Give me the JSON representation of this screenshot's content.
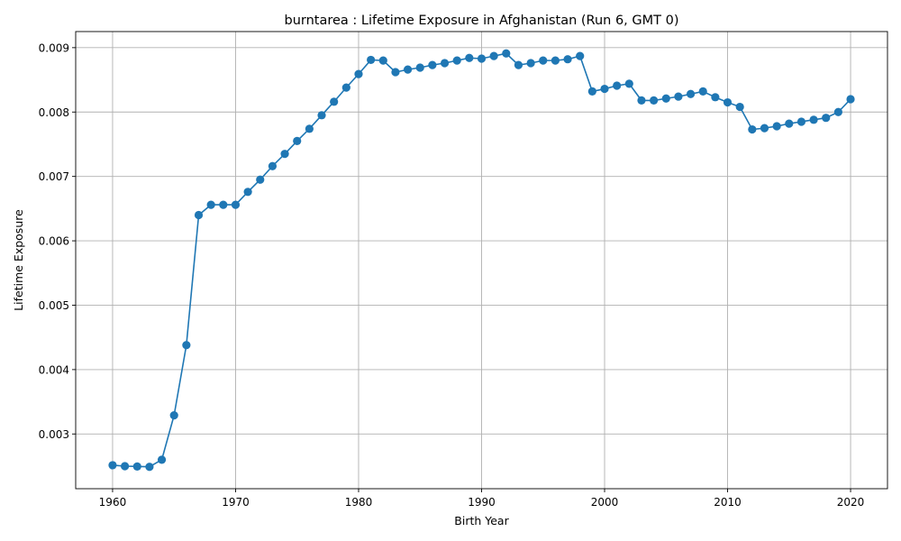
{
  "chart_data": {
    "type": "line",
    "title": "burntarea : Lifetime Exposure in Afghanistan (Run 6, GMT 0)",
    "xlabel": "Birth Year",
    "ylabel": "Lifetime Exposure",
    "xlim": [
      1957,
      2023
    ],
    "ylim": [
      0.00215,
      0.00925
    ],
    "xticks": [
      1960,
      1970,
      1980,
      1990,
      2000,
      2010,
      2020
    ],
    "xtick_labels": [
      "1960",
      "1970",
      "1980",
      "1990",
      "2000",
      "2010",
      "2020"
    ],
    "yticks": [
      0.003,
      0.004,
      0.005,
      0.006,
      0.007,
      0.008,
      0.009
    ],
    "ytick_labels": [
      "0.003",
      "0.004",
      "0.005",
      "0.006",
      "0.007",
      "0.008",
      "0.009"
    ],
    "grid": true,
    "marker": "circle",
    "color": "#1f77b4",
    "series": [
      {
        "x": [
          1960,
          1961,
          1962,
          1963,
          1964,
          1965,
          1966,
          1967,
          1968,
          1969,
          1970,
          1971,
          1972,
          1973,
          1974,
          1975,
          1976,
          1977,
          1978,
          1979,
          1980,
          1981,
          1982,
          1983,
          1984,
          1985,
          1986,
          1987,
          1988,
          1989,
          1990,
          1991,
          1992,
          1993,
          1994,
          1995,
          1996,
          1997,
          1998,
          1999,
          2000,
          2001,
          2002,
          2003,
          2004,
          2005,
          2006,
          2007,
          2008,
          2009,
          2010,
          2011,
          2012,
          2013,
          2014,
          2015,
          2016,
          2017,
          2018,
          2019,
          2020
        ],
        "values": [
          0.002515,
          0.0025,
          0.002495,
          0.00249,
          0.0026,
          0.00329,
          0.00438,
          0.0064,
          0.00656,
          0.00656,
          0.00656,
          0.00676,
          0.00695,
          0.00716,
          0.00735,
          0.00755,
          0.00774,
          0.00795,
          0.00816,
          0.00838,
          0.00859,
          0.00881,
          0.0088,
          0.00862,
          0.00866,
          0.00869,
          0.00873,
          0.00876,
          0.0088,
          0.00884,
          0.00883,
          0.00887,
          0.00891,
          0.00873,
          0.00876,
          0.0088,
          0.0088,
          0.00882,
          0.00887,
          0.00832,
          0.00836,
          0.00841,
          0.00844,
          0.00818,
          0.00818,
          0.00821,
          0.00824,
          0.00828,
          0.00832,
          0.00823,
          0.00815,
          0.00808,
          0.00773,
          0.00775,
          0.00778,
          0.00782,
          0.00785,
          0.00788,
          0.00791,
          0.008,
          0.0082
        ]
      }
    ]
  }
}
